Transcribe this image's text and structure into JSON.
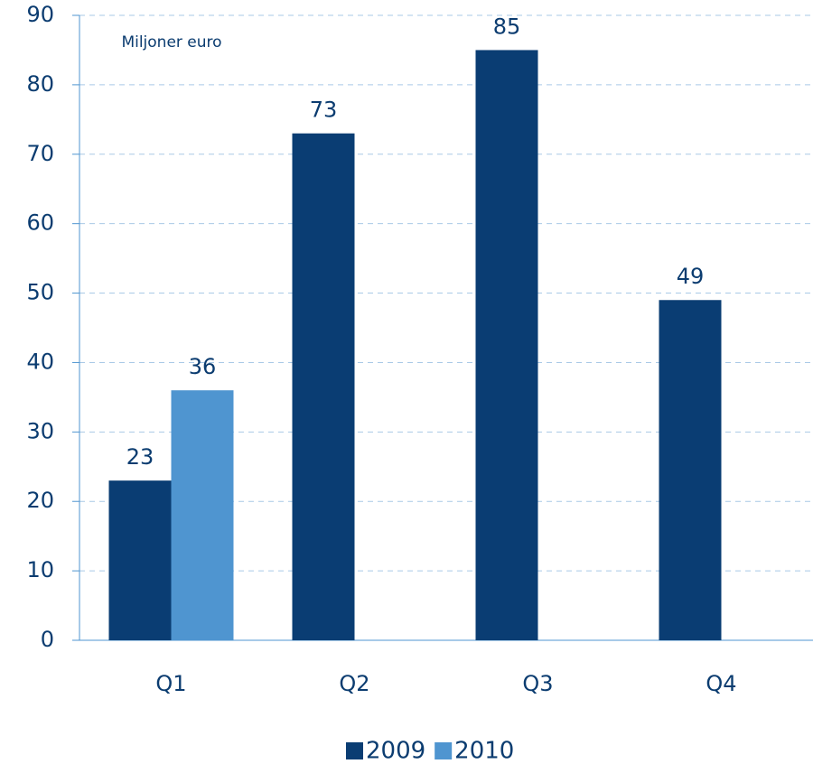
{
  "chart_data": {
    "type": "bar",
    "subtitle": "Miljoner euro",
    "categories": [
      "Q1",
      "Q2",
      "Q3",
      "Q4"
    ],
    "series": [
      {
        "name": "2009",
        "color": "#0a3d73",
        "values": [
          23,
          73,
          85,
          49
        ]
      },
      {
        "name": "2010",
        "color": "#4f95d0",
        "values": [
          36,
          null,
          null,
          null
        ]
      }
    ],
    "ylim": [
      0,
      90
    ],
    "yticks": [
      0,
      10,
      20,
      30,
      40,
      50,
      60,
      70,
      80,
      90
    ],
    "grid": true,
    "legend": "bottom"
  }
}
